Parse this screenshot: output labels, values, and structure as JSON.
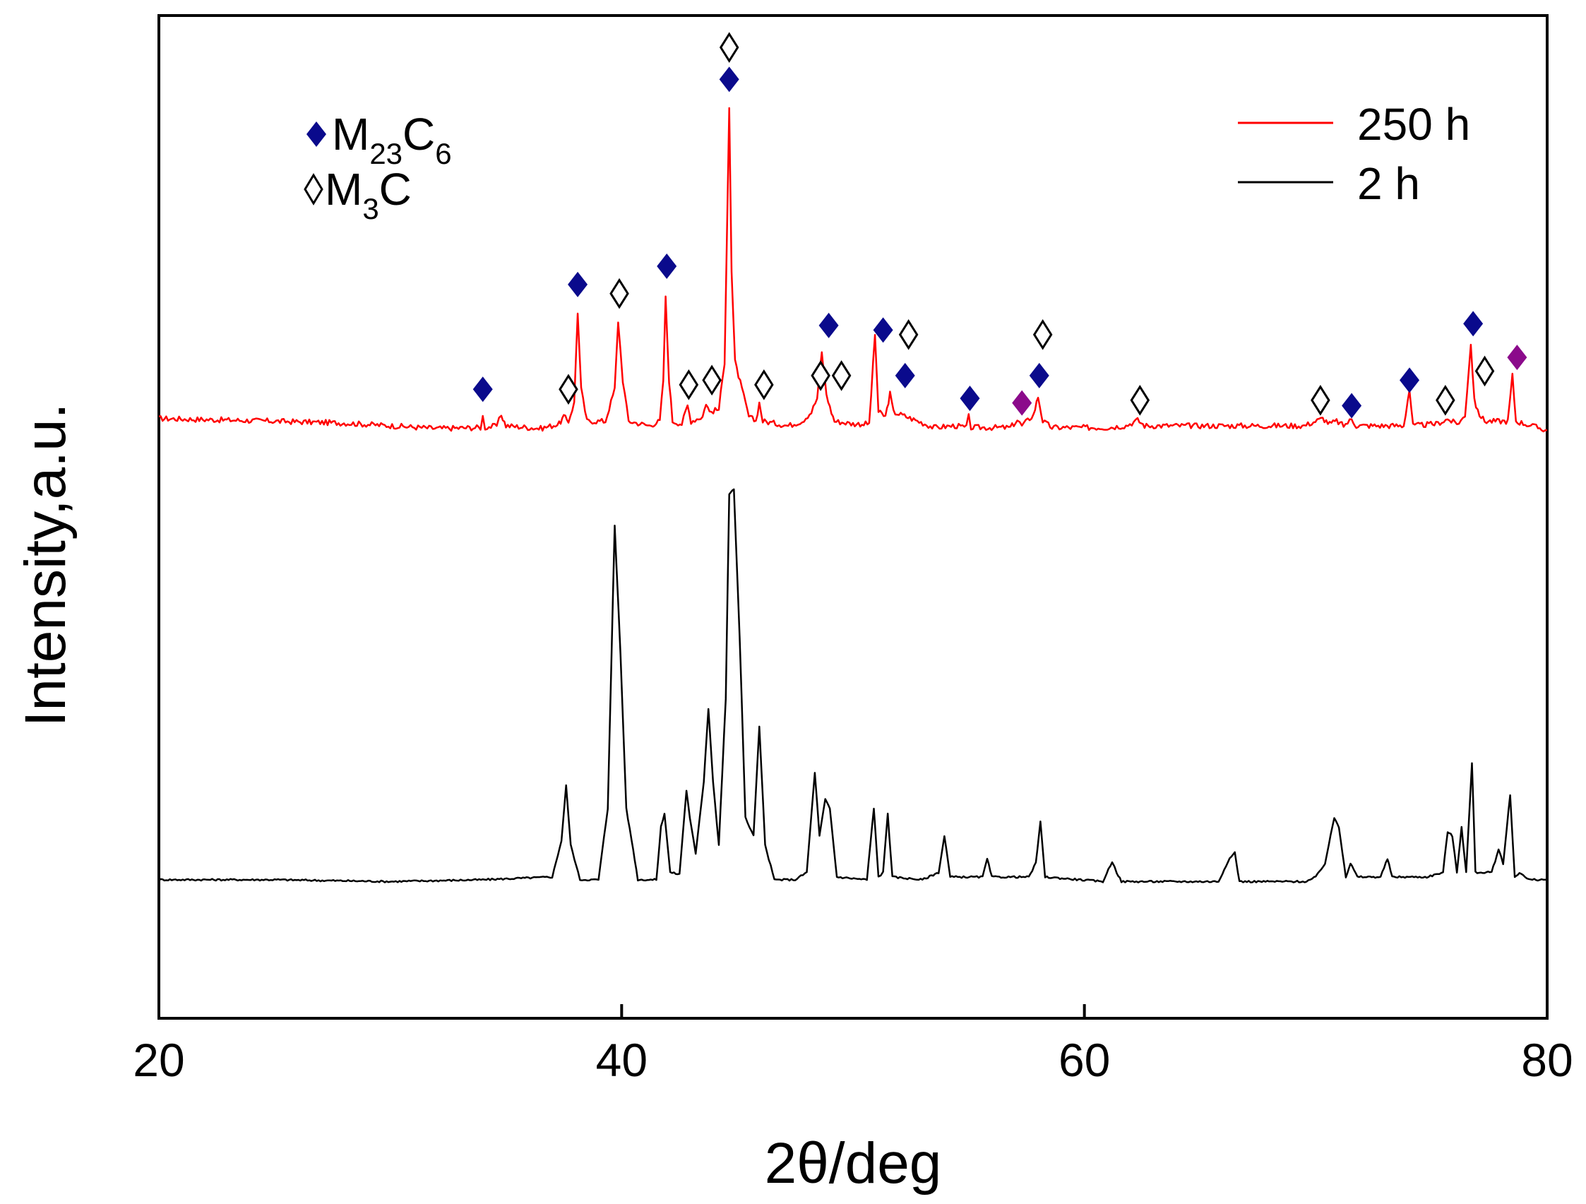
{
  "chart_data": {
    "type": "line",
    "title": "",
    "xlabel": "2θ/deg",
    "ylabel": "Intensity,a.u.",
    "xlim": [
      20,
      80
    ],
    "ylim": [
      0,
      11
    ],
    "x_ticks": [
      20,
      40,
      60,
      80
    ],
    "y_ticks": [],
    "grid": false,
    "legend_position": "top-right",
    "colors": {
      "series_250h": "#ff0000",
      "series_2h": "#000000",
      "m23c6": "#0a0a8c",
      "magenta": "#8b0a8b"
    },
    "series": [
      {
        "name": "250 h",
        "legend_label": "250 h",
        "baseline": 6.4,
        "points": [
          [
            20,
            6.58
          ],
          [
            25,
            6.55
          ],
          [
            28,
            6.53
          ],
          [
            32,
            6.47
          ],
          [
            33.9,
            6.48
          ],
          [
            34.0,
            6.6
          ],
          [
            34.1,
            6.48
          ],
          [
            34.6,
            6.5
          ],
          [
            34.8,
            6.62
          ],
          [
            35.0,
            6.5
          ],
          [
            36.5,
            6.47
          ],
          [
            37.3,
            6.52
          ],
          [
            37.5,
            6.6
          ],
          [
            37.7,
            6.55
          ],
          [
            37.95,
            6.75
          ],
          [
            38.1,
            7.75
          ],
          [
            38.25,
            6.9
          ],
          [
            38.5,
            6.55
          ],
          [
            39.3,
            6.55
          ],
          [
            39.7,
            6.9
          ],
          [
            39.85,
            7.65
          ],
          [
            40.05,
            7.0
          ],
          [
            40.3,
            6.55
          ],
          [
            41.2,
            6.5
          ],
          [
            41.65,
            6.55
          ],
          [
            41.8,
            7.0
          ],
          [
            41.9,
            7.9
          ],
          [
            42.05,
            7.0
          ],
          [
            42.2,
            6.55
          ],
          [
            42.6,
            6.52
          ],
          [
            42.85,
            6.72
          ],
          [
            43.0,
            6.55
          ],
          [
            43.5,
            6.6
          ],
          [
            43.65,
            6.75
          ],
          [
            43.8,
            6.65
          ],
          [
            44.2,
            6.68
          ],
          [
            44.45,
            7.2
          ],
          [
            44.55,
            8.6
          ],
          [
            44.65,
            10.0
          ],
          [
            44.75,
            8.2
          ],
          [
            44.9,
            7.2
          ],
          [
            45.2,
            6.9
          ],
          [
            45.5,
            6.6
          ],
          [
            45.8,
            6.55
          ],
          [
            45.95,
            6.75
          ],
          [
            46.1,
            6.55
          ],
          [
            47.2,
            6.5
          ],
          [
            47.8,
            6.55
          ],
          [
            48.2,
            6.65
          ],
          [
            48.45,
            6.8
          ],
          [
            48.65,
            7.3
          ],
          [
            48.85,
            6.85
          ],
          [
            49.0,
            6.7
          ],
          [
            49.2,
            6.55
          ],
          [
            50.0,
            6.52
          ],
          [
            50.7,
            6.52
          ],
          [
            50.95,
            7.5
          ],
          [
            51.1,
            6.65
          ],
          [
            51.4,
            6.6
          ],
          [
            51.6,
            6.85
          ],
          [
            51.75,
            6.65
          ],
          [
            52.3,
            6.6
          ],
          [
            53.5,
            6.48
          ],
          [
            54.4,
            6.5
          ],
          [
            54.9,
            6.48
          ],
          [
            55.0,
            6.6
          ],
          [
            55.1,
            6.48
          ],
          [
            56.8,
            6.48
          ],
          [
            57.1,
            6.56
          ],
          [
            57.3,
            6.5
          ],
          [
            57.8,
            6.62
          ],
          [
            58.0,
            6.82
          ],
          [
            58.2,
            6.55
          ],
          [
            58.6,
            6.48
          ],
          [
            61.0,
            6.48
          ],
          [
            61.8,
            6.5
          ],
          [
            62.3,
            6.56
          ],
          [
            62.6,
            6.5
          ],
          [
            69.5,
            6.5
          ],
          [
            70.3,
            6.58
          ],
          [
            70.6,
            6.52
          ],
          [
            70.9,
            6.55
          ],
          [
            71.2,
            6.5
          ],
          [
            71.55,
            6.57
          ],
          [
            71.75,
            6.5
          ],
          [
            73.8,
            6.5
          ],
          [
            74.05,
            6.9
          ],
          [
            74.2,
            6.5
          ],
          [
            75.2,
            6.52
          ],
          [
            75.7,
            6.57
          ],
          [
            76.1,
            6.52
          ],
          [
            76.45,
            6.6
          ],
          [
            76.7,
            7.4
          ],
          [
            76.85,
            6.8
          ],
          [
            77.0,
            6.65
          ],
          [
            77.3,
            6.55
          ],
          [
            78.3,
            6.55
          ],
          [
            78.5,
            7.05
          ],
          [
            78.65,
            6.55
          ],
          [
            80,
            6.45
          ]
        ]
      },
      {
        "name": "2 h",
        "legend_label": "2 h",
        "baseline": 1.5,
        "points": [
          [
            20,
            1.52
          ],
          [
            25,
            1.52
          ],
          [
            30,
            1.5
          ],
          [
            34,
            1.52
          ],
          [
            37,
            1.55
          ],
          [
            37.4,
            1.95
          ],
          [
            37.6,
            2.55
          ],
          [
            37.8,
            1.9
          ],
          [
            38.2,
            1.52
          ],
          [
            39.0,
            1.52
          ],
          [
            39.4,
            2.3
          ],
          [
            39.7,
            5.4
          ],
          [
            39.95,
            4.0
          ],
          [
            40.2,
            2.3
          ],
          [
            40.5,
            1.85
          ],
          [
            40.7,
            1.52
          ],
          [
            41.5,
            1.52
          ],
          [
            41.7,
            2.1
          ],
          [
            41.85,
            2.25
          ],
          [
            42.1,
            1.6
          ],
          [
            42.5,
            1.58
          ],
          [
            42.8,
            2.5
          ],
          [
            42.95,
            2.2
          ],
          [
            43.2,
            1.8
          ],
          [
            43.55,
            2.6
          ],
          [
            43.75,
            3.4
          ],
          [
            43.95,
            2.6
          ],
          [
            44.2,
            1.9
          ],
          [
            44.5,
            3.5
          ],
          [
            44.65,
            5.75
          ],
          [
            44.85,
            5.8
          ],
          [
            45.1,
            4.2
          ],
          [
            45.35,
            2.2
          ],
          [
            45.7,
            2.0
          ],
          [
            45.95,
            3.2
          ],
          [
            46.2,
            1.9
          ],
          [
            46.6,
            1.52
          ],
          [
            47.5,
            1.52
          ],
          [
            48.0,
            1.6
          ],
          [
            48.35,
            2.7
          ],
          [
            48.55,
            2.0
          ],
          [
            48.8,
            2.4
          ],
          [
            49.0,
            2.3
          ],
          [
            49.3,
            1.55
          ],
          [
            50.6,
            1.52
          ],
          [
            50.9,
            2.3
          ],
          [
            51.1,
            1.55
          ],
          [
            51.3,
            1.6
          ],
          [
            51.5,
            2.25
          ],
          [
            51.7,
            1.55
          ],
          [
            53.0,
            1.52
          ],
          [
            53.7,
            1.6
          ],
          [
            53.95,
            2.0
          ],
          [
            54.2,
            1.55
          ],
          [
            55.6,
            1.55
          ],
          [
            55.8,
            1.75
          ],
          [
            56.0,
            1.55
          ],
          [
            57.6,
            1.55
          ],
          [
            57.9,
            1.7
          ],
          [
            58.1,
            2.15
          ],
          [
            58.3,
            1.55
          ],
          [
            60.8,
            1.5
          ],
          [
            61.2,
            1.72
          ],
          [
            61.4,
            1.6
          ],
          [
            61.6,
            1.5
          ],
          [
            65.8,
            1.5
          ],
          [
            66.2,
            1.72
          ],
          [
            66.5,
            1.82
          ],
          [
            66.7,
            1.5
          ],
          [
            69.6,
            1.5
          ],
          [
            70.0,
            1.55
          ],
          [
            70.4,
            1.7
          ],
          [
            70.8,
            2.2
          ],
          [
            71.0,
            2.1
          ],
          [
            71.3,
            1.55
          ],
          [
            71.5,
            1.7
          ],
          [
            71.8,
            1.55
          ],
          [
            72.8,
            1.55
          ],
          [
            73.1,
            1.75
          ],
          [
            73.3,
            1.55
          ],
          [
            74.8,
            1.55
          ],
          [
            75.5,
            1.6
          ],
          [
            75.7,
            2.05
          ],
          [
            75.9,
            2.0
          ],
          [
            76.1,
            1.6
          ],
          [
            76.3,
            2.1
          ],
          [
            76.5,
            1.6
          ],
          [
            76.75,
            2.8
          ],
          [
            76.9,
            1.6
          ],
          [
            77.6,
            1.6
          ],
          [
            77.9,
            1.85
          ],
          [
            78.1,
            1.7
          ],
          [
            78.4,
            2.45
          ],
          [
            78.6,
            1.55
          ],
          [
            78.8,
            1.6
          ],
          [
            79.2,
            1.52
          ],
          [
            80,
            1.52
          ]
        ]
      }
    ],
    "phase_legend": [
      {
        "symbol": "filled-diamond",
        "main": "M",
        "sub": "23",
        "tail": "C",
        "sub2": "6"
      },
      {
        "symbol": "open-diamond",
        "main": "M",
        "sub": "3",
        "tail": "C",
        "sub2": ""
      }
    ],
    "markers": [
      {
        "type": "filled",
        "x": 34.0,
        "y": 6.9
      },
      {
        "type": "open",
        "x": 37.7,
        "y": 6.9
      },
      {
        "type": "filled",
        "x": 38.1,
        "y": 8.05
      },
      {
        "type": "open",
        "x": 39.9,
        "y": 7.95
      },
      {
        "type": "filled",
        "x": 41.95,
        "y": 8.25
      },
      {
        "type": "open",
        "x": 42.9,
        "y": 6.95
      },
      {
        "type": "open",
        "x": 43.9,
        "y": 7.0
      },
      {
        "type": "filled",
        "x": 44.65,
        "y": 10.3
      },
      {
        "type": "open",
        "x": 44.65,
        "y": 10.65
      },
      {
        "type": "open",
        "x": 46.15,
        "y": 6.95
      },
      {
        "type": "open",
        "x": 48.6,
        "y": 7.05
      },
      {
        "type": "filled",
        "x": 48.95,
        "y": 7.6
      },
      {
        "type": "open",
        "x": 49.5,
        "y": 7.05
      },
      {
        "type": "filled",
        "x": 51.3,
        "y": 7.55
      },
      {
        "type": "open",
        "x": 52.4,
        "y": 7.5
      },
      {
        "type": "filled",
        "x": 52.25,
        "y": 7.05
      },
      {
        "type": "filled",
        "x": 55.05,
        "y": 6.8
      },
      {
        "type": "magenta",
        "x": 57.3,
        "y": 6.75
      },
      {
        "type": "filled",
        "x": 58.05,
        "y": 7.05
      },
      {
        "type": "open",
        "x": 58.2,
        "y": 7.5
      },
      {
        "type": "open",
        "x": 62.4,
        "y": 6.78
      },
      {
        "type": "open",
        "x": 70.2,
        "y": 6.78
      },
      {
        "type": "filled",
        "x": 71.55,
        "y": 6.72
      },
      {
        "type": "filled",
        "x": 74.05,
        "y": 7.0
      },
      {
        "type": "open",
        "x": 75.6,
        "y": 6.78
      },
      {
        "type": "filled",
        "x": 76.8,
        "y": 7.62
      },
      {
        "type": "open",
        "x": 77.3,
        "y": 7.1
      },
      {
        "type": "magenta",
        "x": 78.7,
        "y": 7.25
      }
    ]
  }
}
